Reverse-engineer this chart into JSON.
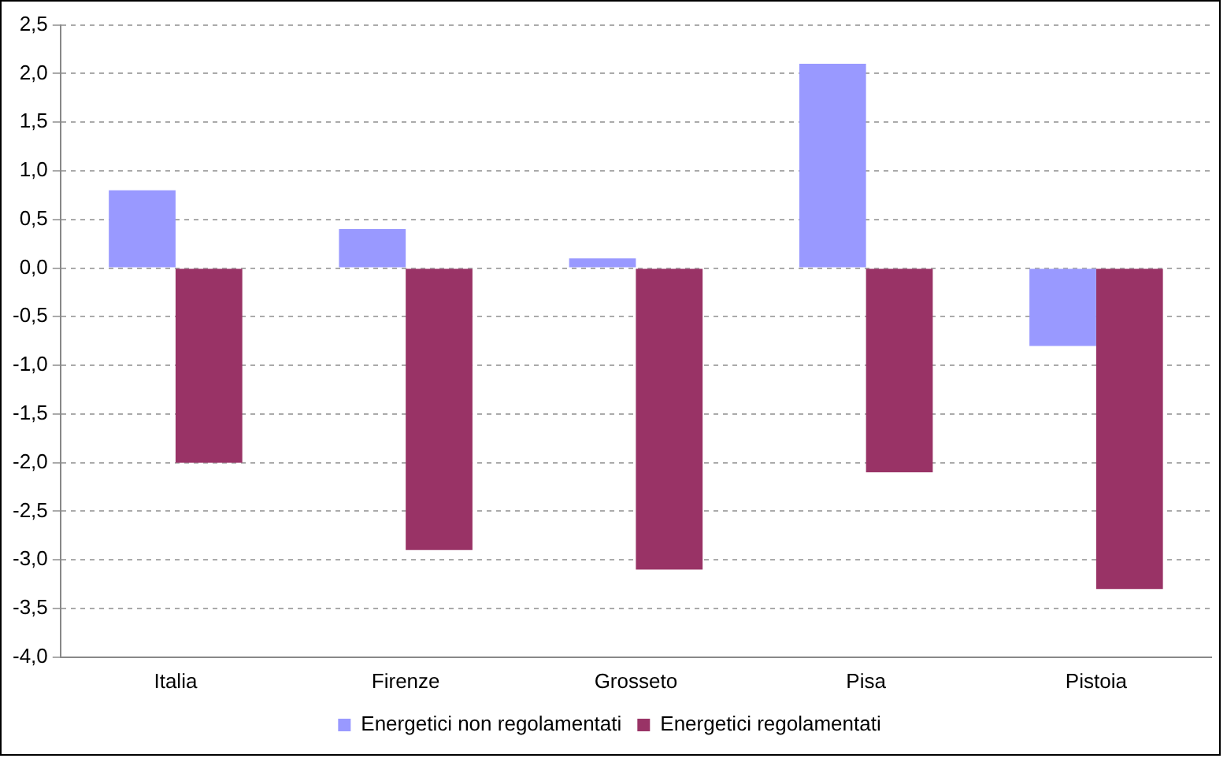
{
  "chart_data": {
    "type": "bar",
    "categories": [
      "Italia",
      "Firenze",
      "Grosseto",
      "Pisa",
      "Pistoia"
    ],
    "series": [
      {
        "name": "Energetici non regolamentati",
        "color": "#9999ff",
        "values": [
          0.8,
          0.4,
          0.1,
          2.1,
          -0.8
        ]
      },
      {
        "name": "Energetici regolamentati",
        "color": "#993366",
        "values": [
          -2.0,
          -2.9,
          -3.1,
          -2.1,
          -3.3
        ]
      }
    ],
    "ylim": [
      -4.0,
      2.5
    ],
    "yticks": [
      {
        "value": -4.0,
        "label": "-4,0"
      },
      {
        "value": -3.5,
        "label": "-3,5"
      },
      {
        "value": -3.0,
        "label": "-3,0"
      },
      {
        "value": -2.5,
        "label": "-2,5"
      },
      {
        "value": -2.0,
        "label": "-2,0"
      },
      {
        "value": -1.5,
        "label": "-1,5"
      },
      {
        "value": -1.0,
        "label": "-1,0"
      },
      {
        "value": -0.5,
        "label": "-0,5"
      },
      {
        "value": 0.0,
        "label": "0,0"
      },
      {
        "value": 0.5,
        "label": "0,5"
      },
      {
        "value": 1.0,
        "label": "1,0"
      },
      {
        "value": 1.5,
        "label": "1,5"
      },
      {
        "value": 2.0,
        "label": "2,0"
      },
      {
        "value": 2.5,
        "label": "2,5"
      }
    ],
    "grid": "y",
    "legend": "bottom"
  }
}
